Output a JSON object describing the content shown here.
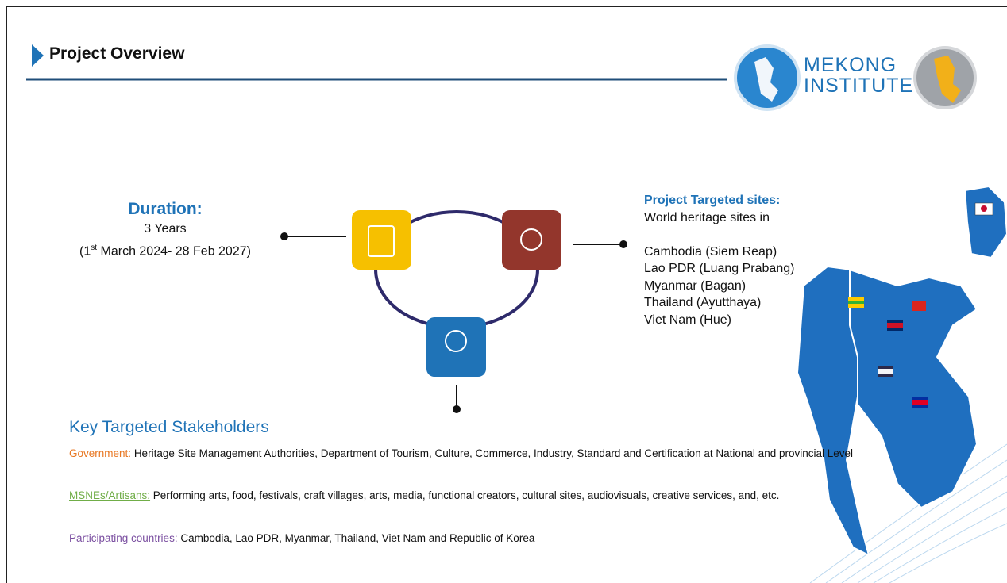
{
  "header": {
    "title": "Project Overview",
    "logo": [
      "MEKONG",
      "INSTITUTE"
    ]
  },
  "duration": {
    "heading": "Duration:",
    "length": "3 Years",
    "period": [
      "(1",
      "st",
      " March 2024- 28 Feb 2027)"
    ]
  },
  "sites": {
    "heading": "Project Targeted sites:",
    "intro": "World heritage sites in",
    "list": [
      "Cambodia (Siem Reap)",
      "Lao PDR (Luang Prabang)",
      "Myanmar (Bagan)",
      "Thailand (Ayutthaya)",
      "Viet Nam (Hue)"
    ]
  },
  "stakeholders": {
    "heading": "Key Targeted Stakeholders",
    "entries": [
      {
        "label": "Government:",
        "text": "Heritage Site Management Authorities, Department of Tourism, Culture, Commerce, Industry, Standard and Certification at   National and provincial Level"
      },
      {
        "label": "MSNEs/Artisans:",
        "text": "Performing arts, food, festivals, craft villages, arts, media, functional creators, cultural sites, audiovisuals, creative services, and, etc."
      },
      {
        "label": "Participating countries:",
        "text": "Cambodia, Lao PDR, Myanmar, Thailand, Viet Nam and Republic of Korea"
      }
    ]
  }
}
